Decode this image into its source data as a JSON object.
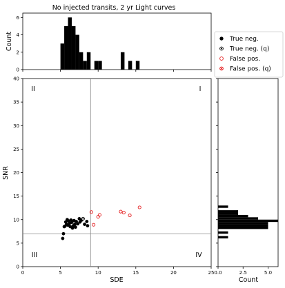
{
  "chart_data": [
    {
      "id": "top_hist",
      "type": "bar",
      "title": "No injected transits, 2 yr Light curves",
      "ylabel": "Count",
      "xlim": [
        0,
        25
      ],
      "ylim": [
        0,
        6.5
      ],
      "yticks": [
        0,
        2,
        4,
        6
      ],
      "bin_width": 0.5,
      "bars": [
        {
          "x": 5.0,
          "count": 3
        },
        {
          "x": 5.5,
          "count": 5
        },
        {
          "x": 6.0,
          "count": 6
        },
        {
          "x": 6.5,
          "count": 5
        },
        {
          "x": 7.0,
          "count": 4
        },
        {
          "x": 7.5,
          "count": 2
        },
        {
          "x": 8.0,
          "count": 1
        },
        {
          "x": 8.5,
          "count": 2
        },
        {
          "x": 9.5,
          "count": 1
        },
        {
          "x": 10.0,
          "count": 1
        },
        {
          "x": 13.0,
          "count": 2
        },
        {
          "x": 14.0,
          "count": 1
        },
        {
          "x": 15.0,
          "count": 1
        }
      ]
    },
    {
      "id": "scatter",
      "type": "scatter",
      "xlabel": "SDE",
      "ylabel": "SNR",
      "xlim": [
        0,
        25
      ],
      "ylim": [
        0,
        40
      ],
      "xticks": [
        0,
        5,
        10,
        15,
        20,
        25
      ],
      "yticks": [
        0,
        5,
        10,
        15,
        20,
        25,
        30,
        35,
        40
      ],
      "threshold_lines": {
        "sde": 9,
        "snr": 7
      },
      "quadrant_labels": [
        "I",
        "II",
        "III",
        "IV"
      ],
      "series": [
        {
          "name": "True neg.",
          "marker": "filled",
          "color": "#000000",
          "points": [
            [
              5.3,
              6.0
            ],
            [
              5.4,
              7.0
            ],
            [
              5.5,
              8.5
            ],
            [
              5.6,
              8.6
            ],
            [
              5.7,
              9.5
            ],
            [
              5.8,
              9.0
            ],
            [
              5.9,
              10.0
            ],
            [
              6.0,
              8.8
            ],
            [
              6.1,
              9.7
            ],
            [
              6.2,
              9.2
            ],
            [
              6.3,
              8.5
            ],
            [
              6.4,
              9.9
            ],
            [
              6.5,
              9.4
            ],
            [
              6.6,
              8.2
            ],
            [
              6.7,
              8.7
            ],
            [
              6.8,
              9.8
            ],
            [
              6.9,
              9.0
            ],
            [
              7.0,
              8.4
            ],
            [
              7.1,
              9.6
            ],
            [
              7.3,
              9.1
            ],
            [
              7.5,
              10.2
            ],
            [
              7.6,
              9.5
            ],
            [
              7.8,
              9.9
            ],
            [
              8.2,
              9.0
            ],
            [
              8.5,
              9.6
            ],
            [
              8.6,
              8.7
            ]
          ]
        },
        {
          "name": "True neg. (q)",
          "marker": "filled-open",
          "color": "#000000",
          "points": [
            [
              8.0,
              10.2
            ]
          ]
        },
        {
          "name": "False pos.",
          "marker": "open",
          "color": "#e41a1c",
          "points": [
            [
              9.1,
              11.6
            ],
            [
              9.4,
              8.9
            ],
            [
              10.0,
              10.6
            ],
            [
              10.2,
              11.0
            ],
            [
              13.0,
              11.7
            ],
            [
              13.4,
              11.5
            ],
            [
              14.2,
              10.9
            ],
            [
              15.5,
              12.6
            ]
          ]
        },
        {
          "name": "False pos. (q)",
          "marker": "crossed-open",
          "color": "#e41a1c",
          "points": []
        }
      ]
    },
    {
      "id": "right_hist",
      "type": "bar",
      "orientation": "horizontal",
      "xlabel": "Count",
      "xlim": [
        0,
        6
      ],
      "xticks": [
        0.0,
        2.5,
        5.0
      ],
      "xtick_labels": [
        "0.0",
        "2.5",
        "5.0"
      ],
      "ylim": [
        0,
        40
      ],
      "bin_height": 0.5,
      "bars": [
        {
          "y": 6.0,
          "count": 1
        },
        {
          "y": 7.0,
          "count": 1
        },
        {
          "y": 8.0,
          "count": 5
        },
        {
          "y": 8.5,
          "count": 5
        },
        {
          "y": 9.0,
          "count": 5
        },
        {
          "y": 9.5,
          "count": 6
        },
        {
          "y": 10.0,
          "count": 4
        },
        {
          "y": 10.5,
          "count": 3
        },
        {
          "y": 11.0,
          "count": 2
        },
        {
          "y": 11.5,
          "count": 2
        },
        {
          "y": 12.5,
          "count": 1
        }
      ]
    }
  ],
  "legend": {
    "entries": [
      {
        "label": "True neg.",
        "marker": "filled",
        "color": "#000000"
      },
      {
        "label": "True neg. (q)",
        "marker": "filled-open",
        "color": "#000000"
      },
      {
        "label": "False pos.",
        "marker": "open",
        "color": "#e41a1c"
      },
      {
        "label": "False pos. (q)",
        "marker": "crossed-open",
        "color": "#e41a1c"
      }
    ]
  }
}
